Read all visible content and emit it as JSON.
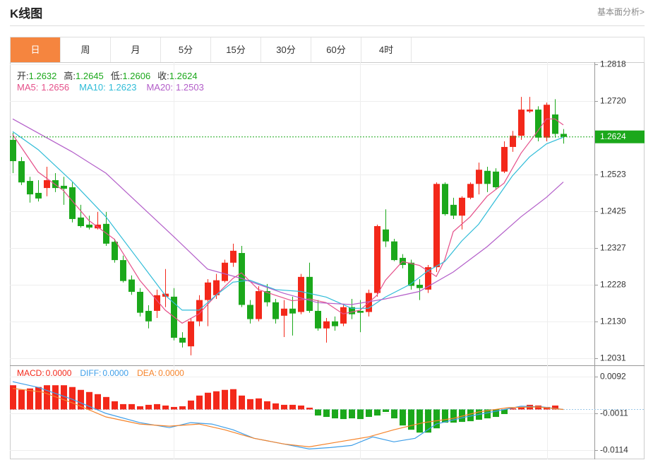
{
  "header": {
    "title": "K线图",
    "link": "基本面分析>"
  },
  "tabs": [
    "日",
    "周",
    "月",
    "5分",
    "15分",
    "30分",
    "60分",
    "4时"
  ],
  "active_tab": 0,
  "chart_data": [
    {
      "type": "candlestick",
      "labels": {
        "open": "开:",
        "high": "高:",
        "low": "低:",
        "close": "收:"
      },
      "open": [
        1.2616,
        1.2559,
        1.2506,
        1.2474,
        1.2487,
        1.2508,
        1.2493,
        1.2489,
        1.2408,
        1.2389,
        1.2379,
        1.2391,
        1.2343,
        1.2294,
        1.2242,
        1.2209,
        1.2158,
        1.2158,
        1.2196,
        1.2196,
        1.2086,
        1.2063,
        1.213,
        1.2187,
        1.22,
        1.2238,
        1.2287,
        1.2313,
        1.2174,
        1.2136,
        1.2211,
        1.2181,
        1.2145,
        1.2164,
        1.2155,
        1.2249,
        1.2158,
        1.2111,
        1.213,
        1.2124,
        1.2168,
        1.2158,
        1.2155,
        1.2206,
        1.2376,
        1.2344,
        1.23,
        1.2287,
        1.2228,
        1.2215,
        1.2275,
        1.2498,
        1.2442,
        1.2413,
        1.2461,
        1.2498,
        1.2533,
        1.2531,
        1.2531,
        1.2597,
        1.2627,
        1.2692,
        1.2697,
        1.2622,
        1.2684,
        1.2632
      ],
      "high": [
        1.2635,
        1.257,
        1.2517,
        1.2508,
        1.2544,
        1.2527,
        1.2517,
        1.2502,
        1.2442,
        1.2413,
        1.2423,
        1.2423,
        1.2351,
        1.2306,
        1.2253,
        1.2219,
        1.2173,
        1.2215,
        1.227,
        1.2219,
        1.2101,
        1.2139,
        1.22,
        1.2243,
        1.2257,
        1.2295,
        1.2338,
        1.2332,
        1.2187,
        1.2224,
        1.223,
        1.219,
        1.2187,
        1.2196,
        1.2257,
        1.2287,
        1.2187,
        1.2139,
        1.2143,
        1.2177,
        1.219,
        1.2187,
        1.2215,
        1.2389,
        1.243,
        1.2351,
        1.231,
        1.2295,
        1.2243,
        1.2281,
        1.2502,
        1.2502,
        1.2461,
        1.2465,
        1.2502,
        1.2555,
        1.2544,
        1.254,
        1.2612,
        1.264,
        1.2731,
        1.2731,
        1.2706,
        1.2716,
        1.2725,
        1.2645
      ],
      "low": [
        1.2527,
        1.2495,
        1.2448,
        1.2451,
        1.2465,
        1.2476,
        1.2442,
        1.2395,
        1.2381,
        1.2376,
        1.2376,
        1.2332,
        1.2287,
        1.2234,
        1.2201,
        1.2143,
        1.2111,
        1.2139,
        1.2168,
        1.2079,
        1.206,
        1.2039,
        1.2117,
        1.2117,
        1.219,
        1.2234,
        1.2276,
        1.2168,
        1.2124,
        1.213,
        1.217,
        1.2124,
        1.2088,
        1.2092,
        1.2149,
        1.2153,
        1.2105,
        1.2073,
        1.2105,
        1.2117,
        1.2136,
        1.2101,
        1.2143,
        1.2196,
        1.2329,
        1.2291,
        1.2272,
        1.2215,
        1.2187,
        1.2206,
        1.2262,
        1.2413,
        1.2404,
        1.2376,
        1.2457,
        1.247,
        1.2476,
        1.2483,
        1.2527,
        1.2584,
        1.2616,
        1.2688,
        1.2612,
        1.2612,
        1.2622,
        1.2606
      ],
      "close": [
        1.2559,
        1.2502,
        1.247,
        1.2459,
        1.2508,
        1.2487,
        1.2485,
        1.2404,
        1.2385,
        1.2381,
        1.2389,
        1.2338,
        1.2294,
        1.2238,
        1.2209,
        1.2153,
        1.213,
        1.22,
        1.2204,
        1.2086,
        1.2073,
        1.213,
        1.2187,
        1.2234,
        1.224,
        1.2287,
        1.2319,
        1.2174,
        1.2136,
        1.2211,
        1.2181,
        1.2136,
        1.2164,
        1.2151,
        1.2249,
        1.2158,
        1.2111,
        1.213,
        1.2117,
        1.2168,
        1.2149,
        1.2153,
        1.2206,
        1.2385,
        1.2344,
        1.2294,
        1.2281,
        1.2225,
        1.2219,
        1.2275,
        1.2498,
        1.2417,
        1.2413,
        1.2461,
        1.2498,
        1.2536,
        1.2498,
        1.2489,
        1.2597,
        1.2627,
        1.2697,
        1.2697,
        1.2622,
        1.271,
        1.2632,
        1.2624
      ],
      "up_color": "#f3281a",
      "down_color": "#1ba81b",
      "series": [
        {
          "name": "MA5:",
          "color": "#e5508a",
          "x": [
            0,
            3,
            6,
            9,
            12,
            15,
            18,
            20,
            22,
            24,
            26,
            27,
            29,
            31,
            33,
            35,
            37,
            39,
            41,
            43,
            44,
            46,
            48,
            50,
            51,
            52,
            54,
            56,
            58,
            60,
            62,
            63,
            64,
            65
          ],
          "values": [
            1.263,
            1.253,
            1.248,
            1.24,
            1.235,
            1.224,
            1.216,
            1.2125,
            1.215,
            1.22,
            1.2245,
            1.226,
            1.2215,
            1.22,
            1.2185,
            1.219,
            1.218,
            1.215,
            1.216,
            1.22,
            1.224,
            1.229,
            1.228,
            1.225,
            1.2295,
            1.237,
            1.241,
            1.2465,
            1.25,
            1.258,
            1.264,
            1.2672,
            1.2672,
            1.2656
          ]
        },
        {
          "name": "MA10:",
          "color": "#2fbcd8",
          "x": [
            0,
            3,
            7,
            11,
            15,
            18,
            20,
            22,
            24,
            26,
            28,
            31,
            34,
            37,
            40,
            42,
            44,
            47,
            49,
            51,
            53,
            55,
            57,
            59,
            61,
            63,
            65
          ],
          "values": [
            1.2638,
            1.259,
            1.2505,
            1.241,
            1.229,
            1.22,
            1.216,
            1.216,
            1.22,
            1.2235,
            1.224,
            1.2215,
            1.221,
            1.2195,
            1.2165,
            1.2165,
            1.2195,
            1.223,
            1.2265,
            1.229,
            1.2345,
            1.239,
            1.2455,
            1.252,
            1.257,
            1.2605,
            1.2623
          ]
        },
        {
          "name": "MA20:",
          "color": "#b35ec9",
          "x": [
            0,
            7,
            11,
            15,
            19,
            23,
            27,
            32,
            36,
            40,
            44,
            48,
            52,
            56,
            60,
            63,
            65
          ],
          "values": [
            1.2672,
            1.2584,
            1.2527,
            1.2442,
            1.2357,
            1.227,
            1.2245,
            1.2205,
            1.218,
            1.2175,
            1.219,
            1.221,
            1.2262,
            1.233,
            1.241,
            1.2462,
            1.2503
          ]
        }
      ],
      "ylim": [
        1.2016,
        1.2824
      ],
      "yticks": [
        1.2818,
        {
          "value": 1.272,
          "label": "1.2720"
        },
        1.2523,
        1.2425,
        1.2327,
        1.2228,
        {
          "value": 1.213,
          "label": "1.2130"
        },
        1.2031
      ],
      "grid": true,
      "last_price_line": true,
      "last_price_color": "#1ba81b"
    },
    {
      "type": "macd",
      "histogram": {
        "name": "MACD:",
        "value_label": "0.0000",
        "color": "#f3281a",
        "down_color": "#1ba81b",
        "values": [
          0.0068,
          0.0055,
          0.0059,
          0.0063,
          0.0068,
          0.0068,
          0.0068,
          0.0063,
          0.0055,
          0.0049,
          0.0043,
          0.0035,
          0.0023,
          0.0015,
          0.0015,
          0.0009,
          0.0013,
          0.0015,
          0.0011,
          0.0007,
          0.0009,
          0.0025,
          0.0039,
          0.0047,
          0.0051,
          0.0055,
          0.0057,
          0.0039,
          0.0029,
          0.0031,
          0.0023,
          0.0017,
          0.0013,
          0.0013,
          0.0011,
          0.0005,
          -0.0017,
          -0.0021,
          -0.0025,
          -0.0027,
          -0.0025,
          -0.0027,
          -0.0021,
          -0.0017,
          -0.0007,
          -0.0025,
          -0.0045,
          -0.0057,
          -0.0065,
          -0.0065,
          -0.0053,
          -0.0037,
          -0.0037,
          -0.0035,
          -0.0033,
          -0.0029,
          -0.0025,
          -0.0021,
          -0.0013,
          0.0003,
          0.0007,
          0.0013,
          0.0011,
          0.0007,
          0.0011,
          0
        ]
      },
      "series": [
        {
          "name": "DIFF:",
          "value_label": "0.0000",
          "color": "#3e9ee8",
          "x": [
            0,
            3,
            7,
            11,
            15,
            18.5,
            21,
            23.5,
            26,
            28.5,
            32,
            35,
            37.5,
            40,
            42.5,
            45,
            47.5,
            50,
            53.5,
            57,
            60,
            62.5,
            65
          ],
          "values": [
            0.0078,
            0.0062,
            0.0029,
            -0.0011,
            -0.0037,
            -0.0051,
            -0.0037,
            -0.0041,
            -0.0057,
            -0.0081,
            -0.0097,
            -0.0111,
            -0.0107,
            -0.0101,
            -0.0077,
            -0.0091,
            -0.0081,
            -0.0041,
            -0.0021,
            -0.0005,
            0.0009,
            0.0007,
            0
          ]
        },
        {
          "name": "DEA:",
          "value_label": "0.0000",
          "color": "#f5832a",
          "x": [
            0,
            3.5,
            7,
            11,
            15,
            18.5,
            22,
            25,
            28.5,
            32,
            35,
            38.5,
            42,
            45,
            48.5,
            52,
            55,
            58.5,
            62,
            65
          ],
          "values": [
            0.0059,
            0.0049,
            0.0019,
            -0.0021,
            -0.0041,
            -0.0047,
            -0.0041,
            -0.0057,
            -0.0081,
            -0.0097,
            -0.0105,
            -0.0091,
            -0.0077,
            -0.0057,
            -0.0037,
            -0.0025,
            -0.0007,
            0.0005,
            0.0007,
            0
          ]
        }
      ],
      "ylim": [
        -0.014,
        0.012
      ],
      "yticks": [
        0.0092,
        -0.0011,
        -0.0114
      ],
      "grid": true
    }
  ]
}
